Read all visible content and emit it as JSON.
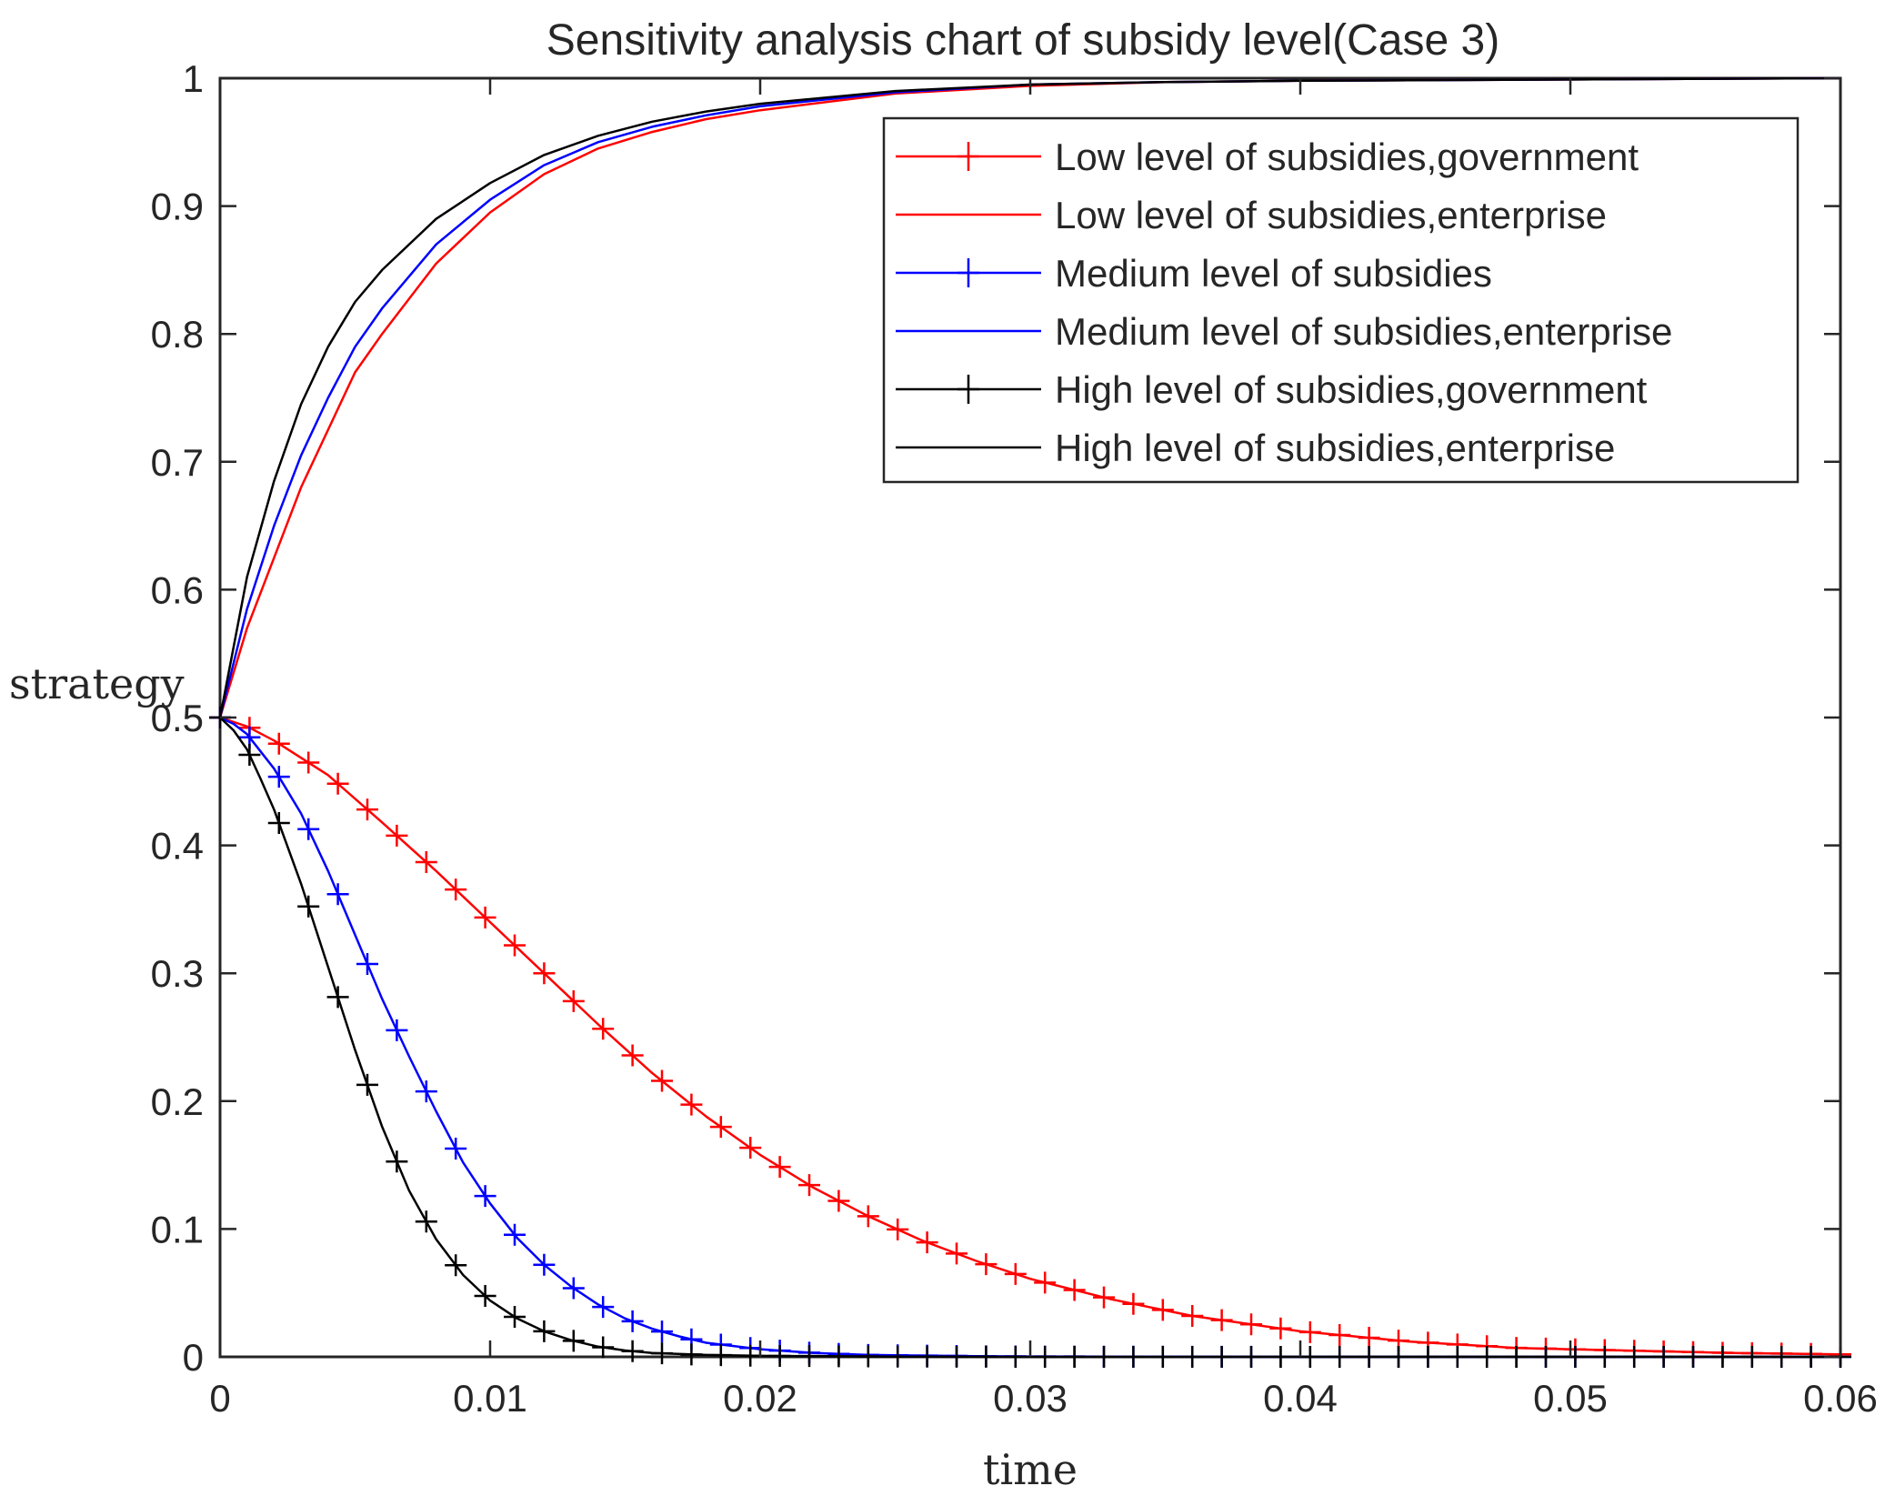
{
  "chart_data": {
    "type": "line",
    "title": "Sensitivity analysis chart of subsidy level(Case 3)",
    "xlabel": "time",
    "ylabel": "strategy",
    "xlim": [
      0,
      0.06
    ],
    "ylim": [
      0,
      1
    ],
    "xticks": [
      0,
      0.01,
      0.02,
      0.03,
      0.04,
      0.05,
      0.06
    ],
    "xtick_labels": [
      "0",
      "0.01",
      "0.02",
      "0.03",
      "0.04",
      "0.05",
      "0.06"
    ],
    "yticks": [
      0,
      0.1,
      0.2,
      0.3,
      0.4,
      0.5,
      0.6,
      0.7,
      0.8,
      0.9,
      1
    ],
    "ytick_labels": [
      "0",
      "0.1",
      "0.2",
      "0.3",
      "0.4",
      "0.5",
      "0.6",
      "0.7",
      "0.8",
      "0.9",
      "1"
    ],
    "grid": false,
    "legend_position": "top-right",
    "series": [
      {
        "name": "Low level of subsidies,government",
        "color": "#ff0000",
        "marker": "plus",
        "x": [
          0,
          0.001,
          0.002,
          0.004,
          0.006,
          0.008,
          0.01,
          0.012,
          0.014,
          0.016,
          0.018,
          0.02,
          0.022,
          0.024,
          0.026,
          0.028,
          0.03,
          0.033,
          0.036,
          0.04,
          0.044,
          0.048,
          0.052,
          0.056,
          0.06
        ],
        "y": [
          0.5,
          0.493,
          0.482,
          0.455,
          0.418,
          0.38,
          0.34,
          0.3,
          0.26,
          0.222,
          0.188,
          0.158,
          0.132,
          0.11,
          0.091,
          0.075,
          0.061,
          0.045,
          0.032,
          0.02,
          0.012,
          0.007,
          0.005,
          0.003,
          0.002
        ]
      },
      {
        "name": "Low level of subsidies,enterprise",
        "color": "#ff0000",
        "marker": "none",
        "x": [
          0,
          0.001,
          0.002,
          0.003,
          0.004,
          0.005,
          0.006,
          0.008,
          0.01,
          0.012,
          0.014,
          0.016,
          0.018,
          0.02,
          0.025,
          0.03,
          0.035,
          0.04,
          0.05,
          0.06
        ],
        "y": [
          0.5,
          0.57,
          0.625,
          0.68,
          0.725,
          0.77,
          0.8,
          0.855,
          0.895,
          0.925,
          0.945,
          0.958,
          0.968,
          0.975,
          0.988,
          0.994,
          0.997,
          0.998,
          0.999,
          1.0
        ]
      },
      {
        "name": "Medium level of subsidies",
        "color": "#0000ff",
        "marker": "plus",
        "x": [
          0,
          0.0005,
          0.001,
          0.002,
          0.003,
          0.004,
          0.005,
          0.006,
          0.007,
          0.008,
          0.009,
          0.01,
          0.011,
          0.012,
          0.013,
          0.014,
          0.015,
          0.016,
          0.017,
          0.018,
          0.02,
          0.022,
          0.024,
          0.026,
          0.028,
          0.03,
          0.033,
          0.036,
          0.04,
          0.045,
          0.05,
          0.055,
          0.06
        ],
        "y": [
          0.5,
          0.495,
          0.487,
          0.46,
          0.425,
          0.38,
          0.33,
          0.28,
          0.235,
          0.192,
          0.152,
          0.12,
          0.093,
          0.072,
          0.055,
          0.041,
          0.03,
          0.022,
          0.016,
          0.011,
          0.006,
          0.003,
          0.0015,
          0.001,
          0.0005,
          0.0003,
          0.0002,
          0.0001,
          0,
          0,
          0,
          0,
          0
        ]
      },
      {
        "name": "Medium level of subsidies,enterprise",
        "color": "#0000ff",
        "marker": "none",
        "x": [
          0,
          0.001,
          0.002,
          0.003,
          0.004,
          0.005,
          0.006,
          0.008,
          0.01,
          0.012,
          0.014,
          0.016,
          0.018,
          0.02,
          0.025,
          0.03,
          0.035,
          0.04,
          0.05,
          0.06
        ],
        "y": [
          0.5,
          0.585,
          0.65,
          0.705,
          0.75,
          0.79,
          0.82,
          0.87,
          0.905,
          0.932,
          0.95,
          0.962,
          0.971,
          0.978,
          0.989,
          0.995,
          0.997,
          0.998,
          0.999,
          1.0
        ]
      },
      {
        "name": "High level of subsidies,government",
        "color": "#000000",
        "marker": "plus",
        "x": [
          0,
          0.0005,
          0.001,
          0.0015,
          0.002,
          0.003,
          0.004,
          0.005,
          0.006,
          0.007,
          0.008,
          0.009,
          0.01,
          0.011,
          0.012,
          0.013,
          0.014,
          0.015,
          0.016,
          0.018,
          0.02,
          0.025,
          0.03,
          0.035,
          0.04,
          0.05,
          0.06
        ],
        "y": [
          0.5,
          0.49,
          0.475,
          0.452,
          0.428,
          0.37,
          0.305,
          0.24,
          0.18,
          0.13,
          0.092,
          0.064,
          0.044,
          0.03,
          0.02,
          0.013,
          0.008,
          0.005,
          0.003,
          0.0015,
          0.0008,
          0.0002,
          0,
          0,
          0,
          0,
          0
        ]
      },
      {
        "name": "High level of subsidies,enterprise",
        "color": "#000000",
        "marker": "none",
        "x": [
          0,
          0.001,
          0.002,
          0.003,
          0.004,
          0.005,
          0.006,
          0.008,
          0.01,
          0.012,
          0.014,
          0.016,
          0.018,
          0.02,
          0.025,
          0.03,
          0.035,
          0.04,
          0.05,
          0.06
        ],
        "y": [
          0.5,
          0.61,
          0.685,
          0.745,
          0.79,
          0.825,
          0.85,
          0.89,
          0.918,
          0.94,
          0.955,
          0.966,
          0.974,
          0.98,
          0.99,
          0.995,
          0.997,
          0.998,
          0.999,
          1.0
        ]
      }
    ]
  }
}
